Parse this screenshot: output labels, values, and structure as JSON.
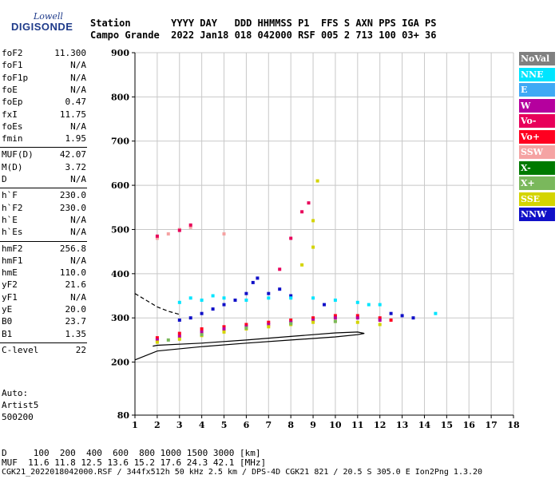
{
  "logo": {
    "line1": "Lowell",
    "line2": "DIGISONDE"
  },
  "header": {
    "row1": "Station       YYYY DAY   DDD HHMMSS P1  FFS S AXN PPS IGA PS",
    "row2": "Campo Grande  2022 Jan18 018 042000 RSF 005 2 713 100 03+ 36"
  },
  "params": [
    {
      "k": "foF2",
      "v": "11.300"
    },
    {
      "k": "foF1",
      "v": "N/A"
    },
    {
      "k": "foF1p",
      "v": "N/A"
    },
    {
      "k": "foE",
      "v": "N/A"
    },
    {
      "k": "foEp",
      "v": "0.47"
    },
    {
      "k": "fxI",
      "v": "11.75"
    },
    {
      "k": "foEs",
      "v": "N/A"
    },
    {
      "k": "fmin",
      "v": "1.95"
    },
    {
      "k": "MUF(D)",
      "v": "42.07"
    },
    {
      "k": "M(D)",
      "v": "3.72"
    },
    {
      "k": "D",
      "v": "N/A"
    },
    {
      "k": "h`F",
      "v": "230.0"
    },
    {
      "k": "h`F2",
      "v": "230.0"
    },
    {
      "k": "h`E",
      "v": "N/A"
    },
    {
      "k": "h`Es",
      "v": "N/A"
    },
    {
      "k": "hmF2",
      "v": "256.8"
    },
    {
      "k": "hmF1",
      "v": "N/A"
    },
    {
      "k": "hmE",
      "v": "110.0"
    },
    {
      "k": "yF2",
      "v": "21.6"
    },
    {
      "k": "yF1",
      "v": "N/A"
    },
    {
      "k": "yE",
      "v": "20.0"
    },
    {
      "k": "B0",
      "v": "23.7"
    },
    {
      "k": "B1",
      "v": "1.35"
    },
    {
      "k": "C-level",
      "v": "22"
    }
  ],
  "auto": {
    "line1": "Auto:",
    "line2": "Artist5",
    "line3": "500200"
  },
  "footer": {
    "d_row": "D     100  200  400  600  800 1000 1500 3000 [km]",
    "muf_row": "MUF  11.6 11.8 12.5 13.6 15.2 17.6 24.3 42.1 [MHz]",
    "info": "CGK21_2022018042000.RSF / 344fx512h 50 kHz 2.5 km / DPS-4D CGK21 821 / 20.5 S 305.0 E Ion2Png 1.3.20"
  },
  "legend": [
    {
      "label": "NoVal",
      "color": "#808080"
    },
    {
      "label": "NNE",
      "color": "#00e5ff"
    },
    {
      "label": "E",
      "color": "#3fa9f5"
    },
    {
      "label": "W",
      "color": "#b5009e"
    },
    {
      "label": "Vo-",
      "color": "#e8005a"
    },
    {
      "label": "Vo+",
      "color": "#ff0020"
    },
    {
      "label": "SSW",
      "color": "#f5a3a3"
    },
    {
      "label": "X-",
      "color": "#007a00"
    },
    {
      "label": "X+",
      "color": "#7ab85c"
    },
    {
      "label": "SSE",
      "color": "#d4d400"
    },
    {
      "label": "NNW",
      "color": "#1010c8"
    }
  ],
  "chart_data": {
    "type": "scatter",
    "xlim": [
      1,
      18
    ],
    "ylim": [
      80,
      900
    ],
    "x_ticks": [
      1,
      2,
      3,
      4,
      5,
      6,
      7,
      8,
      9,
      10,
      11,
      12,
      13,
      14,
      15,
      16,
      17,
      18
    ],
    "y_ticks": [
      80,
      200,
      300,
      400,
      500,
      600,
      700,
      800,
      900
    ],
    "grid": true,
    "series": [
      {
        "name": "NNW",
        "color": "#1010c8",
        "points": [
          [
            3.0,
            295
          ],
          [
            3.5,
            300
          ],
          [
            4.0,
            310
          ],
          [
            4.5,
            320
          ],
          [
            5.0,
            330
          ],
          [
            5.5,
            340
          ],
          [
            6.0,
            355
          ],
          [
            6.3,
            380
          ],
          [
            6.5,
            390
          ],
          [
            7.0,
            355
          ],
          [
            7.5,
            365
          ],
          [
            8.0,
            350
          ],
          [
            9.5,
            330
          ],
          [
            12.5,
            310
          ],
          [
            13.0,
            305
          ],
          [
            13.5,
            300
          ]
        ]
      },
      {
        "name": "NNE",
        "color": "#00e5ff",
        "points": [
          [
            3.0,
            335
          ],
          [
            3.5,
            345
          ],
          [
            4.0,
            340
          ],
          [
            4.5,
            350
          ],
          [
            5.0,
            345
          ],
          [
            6.0,
            340
          ],
          [
            7.0,
            345
          ],
          [
            8.0,
            345
          ],
          [
            9.0,
            345
          ],
          [
            10.0,
            340
          ],
          [
            11.0,
            335
          ],
          [
            11.5,
            330
          ],
          [
            12.0,
            330
          ],
          [
            14.5,
            310
          ]
        ]
      },
      {
        "name": "Vo+",
        "color": "#ff0020",
        "points": [
          [
            2.0,
            255
          ],
          [
            3.0,
            265
          ],
          [
            4.0,
            275
          ],
          [
            5.0,
            280
          ],
          [
            6.0,
            285
          ],
          [
            7.0,
            290
          ],
          [
            8.0,
            295
          ],
          [
            9.0,
            300
          ],
          [
            10.0,
            305
          ],
          [
            11.0,
            305
          ],
          [
            12.0,
            300
          ],
          [
            12.5,
            295
          ]
        ]
      },
      {
        "name": "W",
        "color": "#b5009e",
        "points": [
          [
            2.0,
            250
          ],
          [
            3.0,
            258
          ],
          [
            4.0,
            268
          ],
          [
            5.0,
            275
          ],
          [
            6.0,
            280
          ],
          [
            7.0,
            285
          ],
          [
            8.0,
            290
          ],
          [
            9.0,
            295
          ],
          [
            10.0,
            300
          ],
          [
            11.0,
            300
          ],
          [
            12.0,
            295
          ]
        ]
      },
      {
        "name": "SSE",
        "color": "#d4d400",
        "points": [
          [
            2.0,
            245
          ],
          [
            3.0,
            252
          ],
          [
            4.0,
            260
          ],
          [
            5.0,
            268
          ],
          [
            6.0,
            275
          ],
          [
            7.0,
            280
          ],
          [
            8.0,
            285
          ],
          [
            9.0,
            290
          ],
          [
            10.0,
            292
          ],
          [
            11.0,
            290
          ],
          [
            12.0,
            285
          ],
          [
            8.5,
            420
          ],
          [
            9.0,
            460
          ],
          [
            9.0,
            520
          ],
          [
            9.2,
            610
          ]
        ]
      },
      {
        "name": "X+",
        "color": "#7ab85c",
        "points": [
          [
            2.5,
            250
          ],
          [
            4.0,
            262
          ],
          [
            6.0,
            277
          ],
          [
            8.0,
            287
          ],
          [
            10.0,
            292
          ]
        ]
      },
      {
        "name": "SSW",
        "color": "#f5a3a3",
        "points": [
          [
            2.0,
            480
          ],
          [
            2.5,
            490
          ],
          [
            3.0,
            500
          ],
          [
            3.5,
            505
          ],
          [
            5.0,
            490
          ]
        ]
      },
      {
        "name": "Vo-",
        "color": "#e8005a",
        "points": [
          [
            2.0,
            485
          ],
          [
            3.0,
            498
          ],
          [
            3.5,
            510
          ],
          [
            7.5,
            410
          ],
          [
            8.0,
            480
          ],
          [
            8.5,
            540
          ],
          [
            8.8,
            560
          ]
        ]
      }
    ],
    "traces": [
      {
        "name": "profile",
        "color": "#000000",
        "points": [
          [
            1.0,
            205
          ],
          [
            2.0,
            225
          ],
          [
            4.0,
            235
          ],
          [
            6.0,
            243
          ],
          [
            8.0,
            250
          ],
          [
            10.0,
            257
          ],
          [
            11.0,
            262
          ],
          [
            11.3,
            265
          ],
          [
            11.0,
            268
          ],
          [
            10.0,
            266
          ],
          [
            8.0,
            258
          ],
          [
            6.0,
            250
          ],
          [
            4.0,
            243
          ],
          [
            2.0,
            238
          ],
          [
            1.8,
            236
          ]
        ]
      },
      {
        "name": "virtual-height",
        "color": "#000000",
        "dashed": true,
        "points": [
          [
            1.0,
            355
          ],
          [
            1.5,
            340
          ],
          [
            2.0,
            325
          ],
          [
            2.5,
            315
          ],
          [
            3.0,
            308
          ]
        ]
      }
    ]
  }
}
